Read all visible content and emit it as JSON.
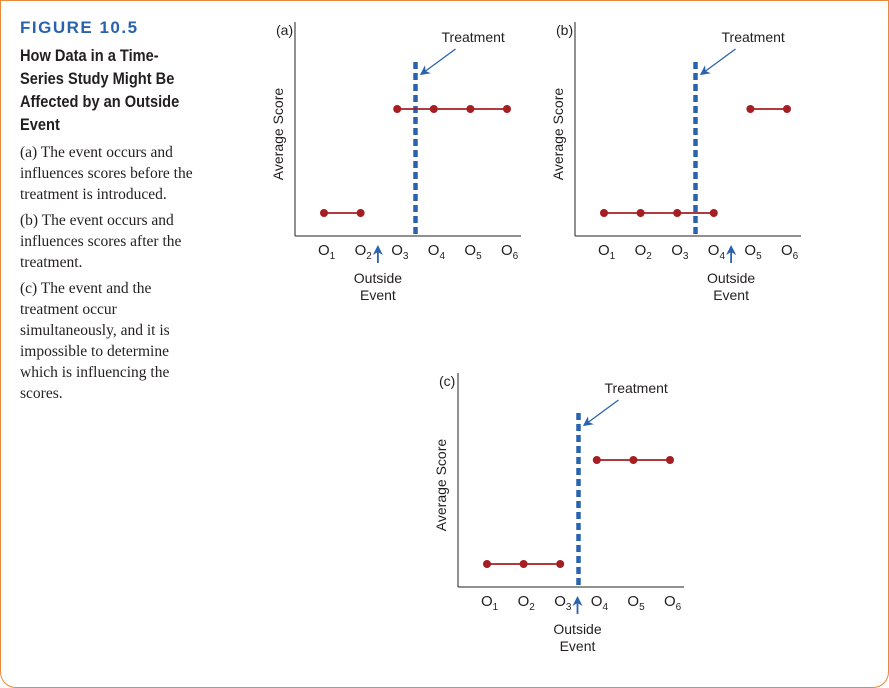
{
  "figure": {
    "label": "FIGURE 10.5",
    "title": "How Data in a Time-Series Study Might Be Affected by an Outside Event",
    "descriptions": [
      "(a) The event occurs and influences scores before the treatment is introduced.",
      "(b) The event occurs and influences scores after the treatment.",
      "(c) The event and the treatment occur simultaneously, and it is impossible to determine which is influencing the scores."
    ]
  },
  "colors": {
    "accent": "#2a63ad",
    "border": "#e8893a",
    "series": "#a41e22",
    "text": "#231f20"
  },
  "chart_data": [
    {
      "type": "line",
      "panel": "(a)",
      "ylabel": "Average Score",
      "observation_labels": [
        "1",
        "2",
        "3",
        "4",
        "5",
        "6"
      ],
      "treatment_label": "Treatment",
      "treatment_after_obs": 3,
      "event_label": [
        "Outside",
        "Event"
      ],
      "event_after_obs": 2,
      "series": [
        {
          "x": [
            1,
            2
          ],
          "y": [
            1,
            1
          ]
        },
        {
          "x": [
            3,
            4,
            5,
            6
          ],
          "y": [
            2,
            2,
            2,
            2
          ]
        }
      ]
    },
    {
      "type": "line",
      "panel": "(b)",
      "ylabel": "Average Score",
      "observation_labels": [
        "1",
        "2",
        "3",
        "4",
        "5",
        "6"
      ],
      "treatment_label": "Treatment",
      "treatment_after_obs": 3,
      "event_label": [
        "Outside",
        "Event"
      ],
      "event_after_obs": 4,
      "series": [
        {
          "x": [
            1,
            2,
            3,
            4
          ],
          "y": [
            1,
            1,
            1,
            1
          ]
        },
        {
          "x": [
            5,
            6
          ],
          "y": [
            2,
            2
          ]
        }
      ]
    },
    {
      "type": "line",
      "panel": "(c)",
      "ylabel": "Average Score",
      "observation_labels": [
        "1",
        "2",
        "3",
        "4",
        "5",
        "6"
      ],
      "treatment_label": "Treatment",
      "treatment_after_obs": 3,
      "event_label": [
        "Outside",
        "Event"
      ],
      "event_after_obs": 3,
      "series": [
        {
          "x": [
            1,
            2,
            3
          ],
          "y": [
            1,
            1,
            1
          ]
        },
        {
          "x": [
            4,
            5,
            6
          ],
          "y": [
            2,
            2,
            2
          ]
        }
      ]
    }
  ]
}
